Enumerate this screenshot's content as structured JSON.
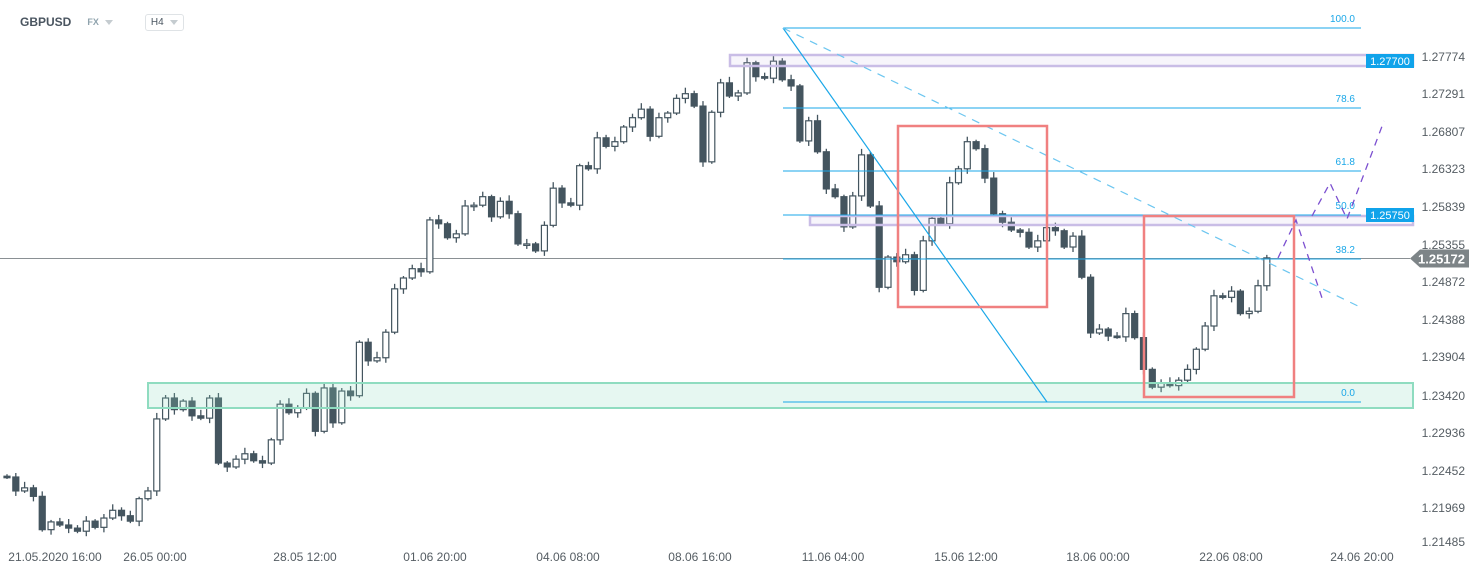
{
  "header": {
    "symbol": "GBPUSD",
    "market": "FX",
    "timeframe": "H4"
  },
  "colors": {
    "bear": "#44555f",
    "bull": "#ffffff",
    "fib": "#1aa7e8",
    "zone_purple": "#c9bde6",
    "zone_green": "#8fdcc0",
    "box_red": "#f08080",
    "price_tag": "#7d8487",
    "scenario": "#7b4fd0"
  },
  "chart_data": {
    "type": "candlestick",
    "price_axis": {
      "ticks": [
        "1.27774",
        "1.27291",
        "1.26807",
        "1.26323",
        "1.25839",
        "1.25355",
        "1.24872",
        "1.24388",
        "1.23904",
        "1.23420",
        "1.22936",
        "1.22452",
        "1.21969",
        "1.21485"
      ]
    },
    "time_axis": {
      "ticks": [
        "21.05.2020  16:00",
        "26.05  00:00",
        "28.05  12:00",
        "01.06  20:00",
        "04.06  08:00",
        "08.06  16:00",
        "11.06  04:00",
        "15.06  12:00",
        "18.06  00:00",
        "22.06  08:00",
        "24.06  20:00"
      ]
    },
    "first_open": 1.2236,
    "closes": [
      1.2235,
      1.2217,
      1.2221,
      1.221,
      1.2167,
      1.2177,
      1.2173,
      1.2169,
      1.2165,
      1.2178,
      1.217,
      1.2182,
      1.2192,
      1.2185,
      1.2178,
      1.2207,
      1.2217,
      1.231,
      1.2337,
      1.2322,
      1.2333,
      1.2314,
      1.2311,
      1.2337,
      1.2253,
      1.2248,
      1.2258,
      1.2265,
      1.2256,
      1.2253,
      1.2283,
      1.2329,
      1.2318,
      1.2324,
      1.2343,
      1.2294,
      1.235,
      1.2305,
      1.2346,
      1.234,
      1.2409,
      1.2385,
      1.2389,
      1.2422,
      1.2478,
      1.2492,
      1.2504,
      1.25,
      1.2567,
      1.2562,
      1.2544,
      1.2549,
      1.2585,
      1.2586,
      1.2597,
      1.2571,
      1.2591,
      1.2575,
      1.2536,
      1.2536,
      1.2527,
      1.256,
      1.2608,
      1.2589,
      1.2586,
      1.2637,
      1.2633,
      1.2673,
      1.2662,
      1.2668,
      1.2687,
      1.2699,
      1.271,
      1.2675,
      1.2699,
      1.2705,
      1.2724,
      1.273,
      1.2714,
      1.2642,
      1.2706,
      1.2744,
      1.2727,
      1.2731,
      1.277,
      1.2752,
      1.275,
      1.2772,
      1.2748,
      1.274,
      1.2669,
      1.2695,
      1.2655,
      1.2607,
      1.2597,
      1.2558,
      1.2598,
      1.2651,
      1.2585,
      1.248,
      1.2519,
      1.2513,
      1.2522,
      1.2476,
      1.254,
      1.2569,
      1.2562,
      1.2615,
      1.2633,
      1.2668,
      1.2659,
      1.2621,
      1.2575,
      1.2564,
      1.2554,
      1.2551,
      1.2532,
      1.254,
      1.2557,
      1.2553,
      1.2532,
      1.2546,
      1.2493,
      1.2421,
      1.2426,
      1.2417,
      1.2416,
      1.2446,
      1.2415,
      1.2374,
      1.2351,
      1.2356,
      1.2353,
      1.236,
      1.2374,
      1.24,
      1.243,
      1.2469,
      1.2467,
      1.2475,
      1.2446,
      1.2449,
      1.2482,
      1.2518
    ],
    "current_price": "1.25172",
    "levels": [
      {
        "label": "1.27700"
      },
      {
        "label": "1.25750"
      }
    ],
    "fibonacci": [
      "100.0",
      "78.6",
      "61.8",
      "50.0",
      "38.2",
      "0.0"
    ]
  }
}
